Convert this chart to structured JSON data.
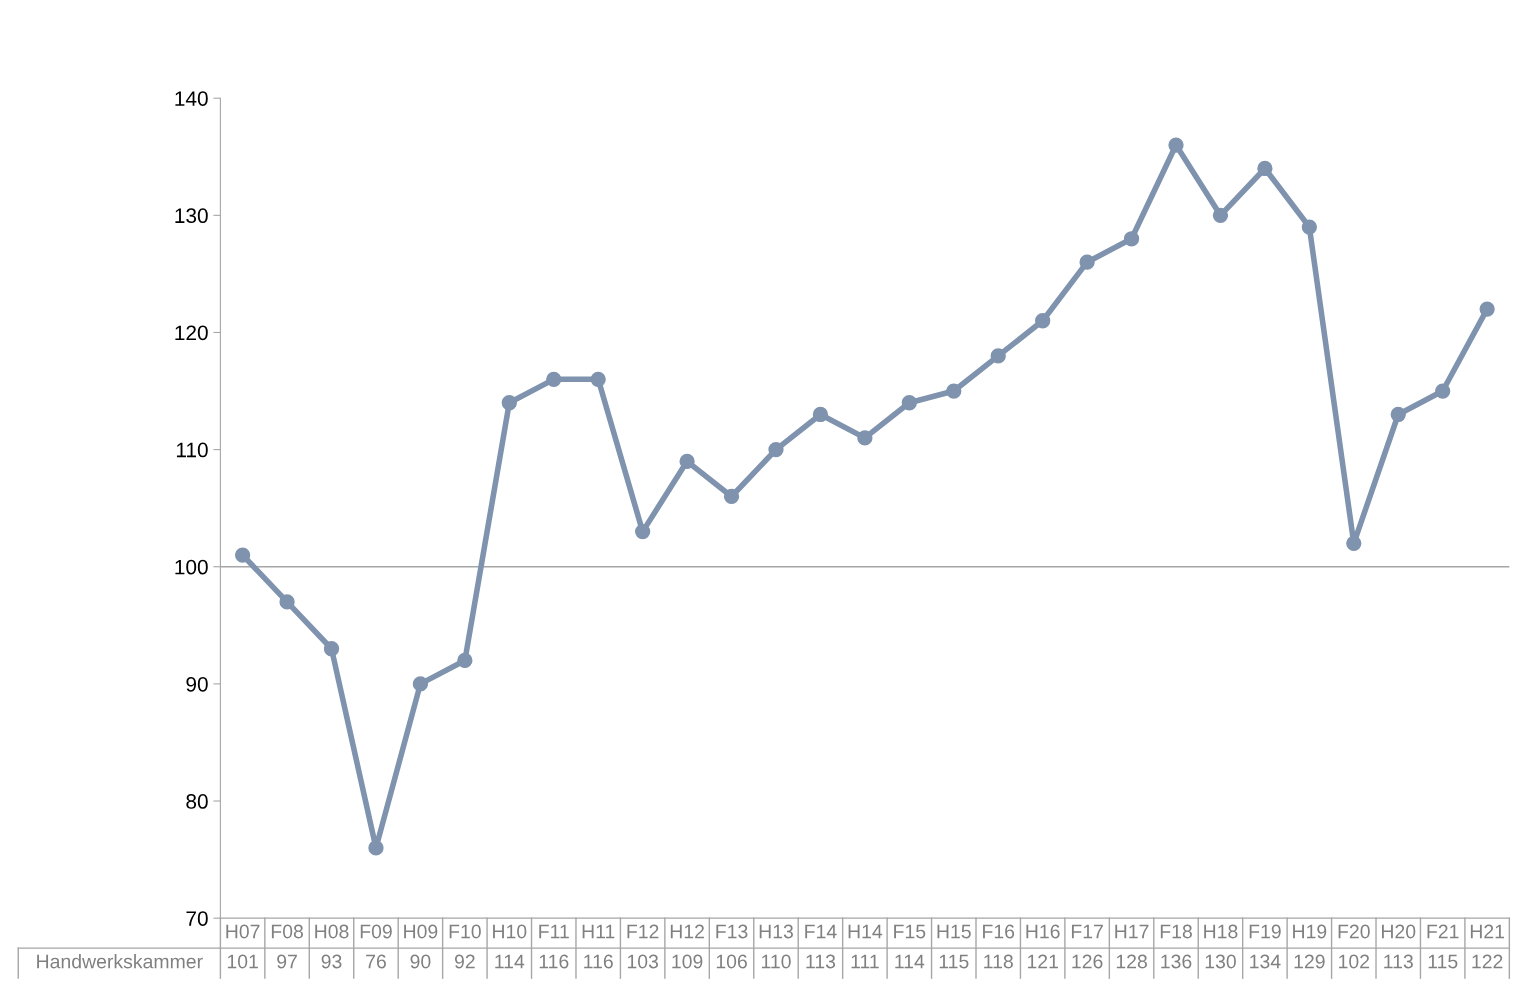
{
  "chart_data": {
    "type": "line",
    "categories": [
      "H07",
      "F08",
      "H08",
      "F09",
      "H09",
      "F10",
      "H10",
      "F11",
      "H11",
      "F12",
      "H12",
      "F13",
      "H13",
      "F14",
      "H14",
      "F15",
      "H15",
      "F16",
      "H16",
      "F17",
      "H17",
      "F18",
      "H18",
      "F19",
      "H19",
      "F20",
      "H20",
      "F21",
      "H21"
    ],
    "series": [
      {
        "name": "Handwerkskammer",
        "color": "#7f93ae",
        "values": [
          101,
          97,
          93,
          76,
          90,
          92,
          114,
          116,
          116,
          103,
          109,
          106,
          110,
          113,
          111,
          114,
          115,
          118,
          121,
          126,
          128,
          136,
          130,
          134,
          129,
          102,
          113,
          115,
          122
        ]
      }
    ],
    "ylim": [
      70,
      140
    ],
    "yticks": [
      70,
      80,
      90,
      100,
      110,
      120,
      130,
      140
    ],
    "ref_lines": [
      {
        "axis": "y",
        "value": 100,
        "color": "#a6a6a6"
      }
    ],
    "marker": "circle",
    "line_style": "solid",
    "grid": false,
    "legend": false,
    "data_labels": true
  }
}
